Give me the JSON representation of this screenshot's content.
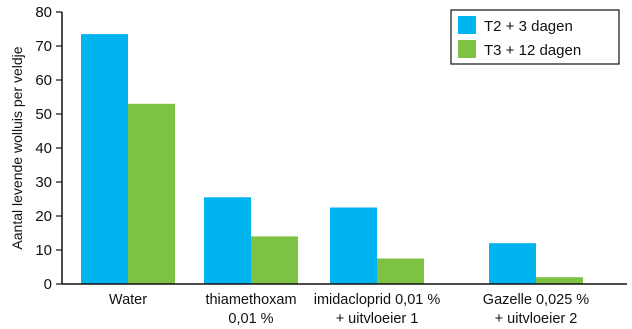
{
  "chart_data": {
    "type": "bar",
    "categories": [
      [
        "Water"
      ],
      [
        "thiamethoxam",
        "0,01 %"
      ],
      [
        "imidacloprid 0,01 %",
        "+ uitvloeier 1"
      ],
      [
        "Gazelle 0,025 %",
        "+ uitvloeier 2"
      ]
    ],
    "series": [
      {
        "name": "T2 + 3 dagen",
        "color": "#00b4f0",
        "values": [
          73.5,
          25.5,
          22.5,
          12
        ]
      },
      {
        "name": "T3 + 12 dagen",
        "color": "#7dc242",
        "values": [
          53,
          14,
          7.5,
          2
        ]
      }
    ],
    "ylabel": "Aantal levende wolluis per veldje",
    "xlabel": "",
    "ylim": [
      0,
      80
    ],
    "yticks": [
      0,
      10,
      20,
      30,
      40,
      50,
      60,
      70,
      80
    ],
    "legend_position": "top-right",
    "grid": false
  }
}
